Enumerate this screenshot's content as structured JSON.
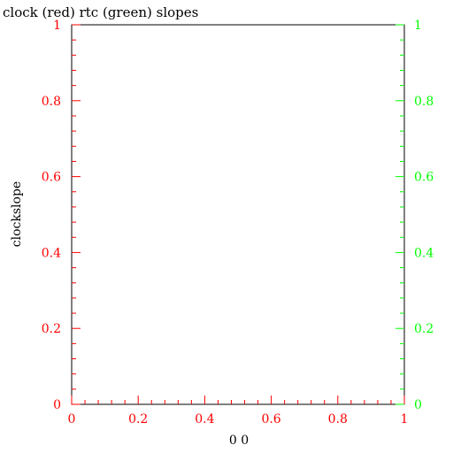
{
  "chart_data": {
    "type": "line",
    "title": "clock (red) rtc (green) slopes",
    "xlabel": "0 0",
    "ylabel": "clockslope",
    "xlim": [
      0,
      1
    ],
    "ylim": [
      0,
      1
    ],
    "y2lim": [
      0,
      1
    ],
    "grid": false,
    "series": [],
    "x_ticks": [
      {
        "value": 0,
        "label": "0"
      },
      {
        "value": 0.2,
        "label": "0.2"
      },
      {
        "value": 0.4,
        "label": "0.4"
      },
      {
        "value": 0.6,
        "label": "0.6"
      },
      {
        "value": 0.8,
        "label": "0.8"
      },
      {
        "value": 1,
        "label": "1"
      }
    ],
    "y_ticks": [
      {
        "value": 0,
        "label": "0"
      },
      {
        "value": 0.2,
        "label": "0.2"
      },
      {
        "value": 0.4,
        "label": "0.4"
      },
      {
        "value": 0.6,
        "label": "0.6"
      },
      {
        "value": 0.8,
        "label": "0.8"
      },
      {
        "value": 1,
        "label": "1"
      }
    ],
    "y2_ticks": [
      {
        "value": 0,
        "label": "0"
      },
      {
        "value": 0.2,
        "label": "0.2"
      },
      {
        "value": 0.4,
        "label": "0.4"
      },
      {
        "value": 0.6,
        "label": "0.6"
      },
      {
        "value": 0.8,
        "label": "0.8"
      },
      {
        "value": 1,
        "label": "1"
      }
    ],
    "minor_ticks_per_major": 4,
    "colors": {
      "frame": "#000000",
      "left_axis": "#ff0000",
      "right_axis": "#00ff00",
      "text": "#000000"
    }
  }
}
